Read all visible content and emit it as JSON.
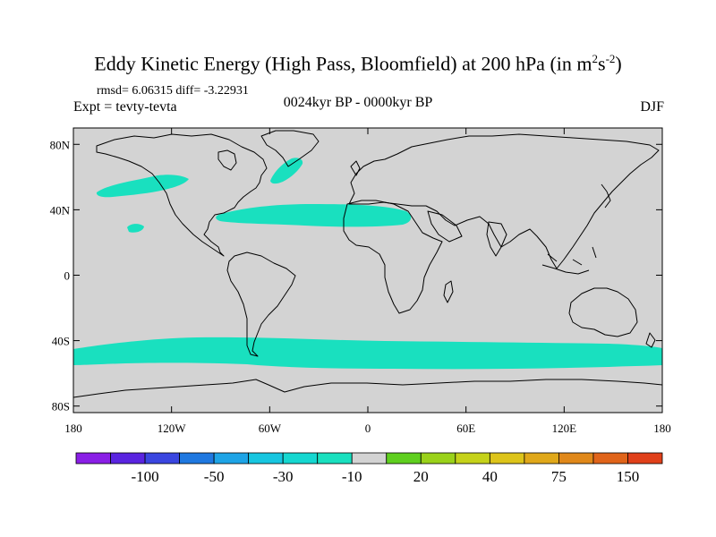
{
  "header": {
    "title_main": "Eddy Kinetic Energy (High Pass, Bloomfield) at 200 hPa (in m",
    "title_sup1": "2",
    "title_mid": "s",
    "title_sup2": "-2",
    "title_close": ")",
    "stats": "rmsd= 6.06315 diff= -3.22931",
    "experiment": "Expt = tevty-tevta",
    "period": "0024kyr BP - 0000kyr BP",
    "season": "DJF"
  },
  "map": {
    "land_color": "#d3d3d3",
    "anomaly_color": "#19e0bf",
    "lat_ticks": [
      {
        "value": 80,
        "label": "80N"
      },
      {
        "value": 40,
        "label": "40N"
      },
      {
        "value": 0,
        "label": "0"
      },
      {
        "value": -40,
        "label": "40S"
      },
      {
        "value": -80,
        "label": "80S"
      }
    ],
    "lon_ticks": [
      {
        "value": -180,
        "label": "180"
      },
      {
        "value": -120,
        "label": "120W"
      },
      {
        "value": -60,
        "label": "60W"
      },
      {
        "value": 0,
        "label": "0"
      },
      {
        "value": 60,
        "label": "60E"
      },
      {
        "value": 120,
        "label": "120E"
      },
      {
        "value": 180,
        "label": "180"
      }
    ]
  },
  "colorbar": {
    "colors": [
      "#8a1fe6",
      "#5a24e0",
      "#3a46e0",
      "#1f78e0",
      "#1ea4e6",
      "#17c6e0",
      "#15d7d0",
      "#19e0bf",
      "#d3d3d3",
      "#5fcf1f",
      "#9ad21a",
      "#c5d21a",
      "#ddc41a",
      "#e0a81a",
      "#e0881a",
      "#e0641a",
      "#e0401a"
    ],
    "labels": [
      {
        "after_index": 1,
        "text": "-100"
      },
      {
        "after_index": 3,
        "text": "-50"
      },
      {
        "after_index": 5,
        "text": "-30"
      },
      {
        "after_index": 7,
        "text": "-10"
      },
      {
        "after_index": 9,
        "text": "20"
      },
      {
        "after_index": 11,
        "text": "40"
      },
      {
        "after_index": 13,
        "text": "75"
      },
      {
        "after_index": 15,
        "text": "150"
      }
    ]
  }
}
